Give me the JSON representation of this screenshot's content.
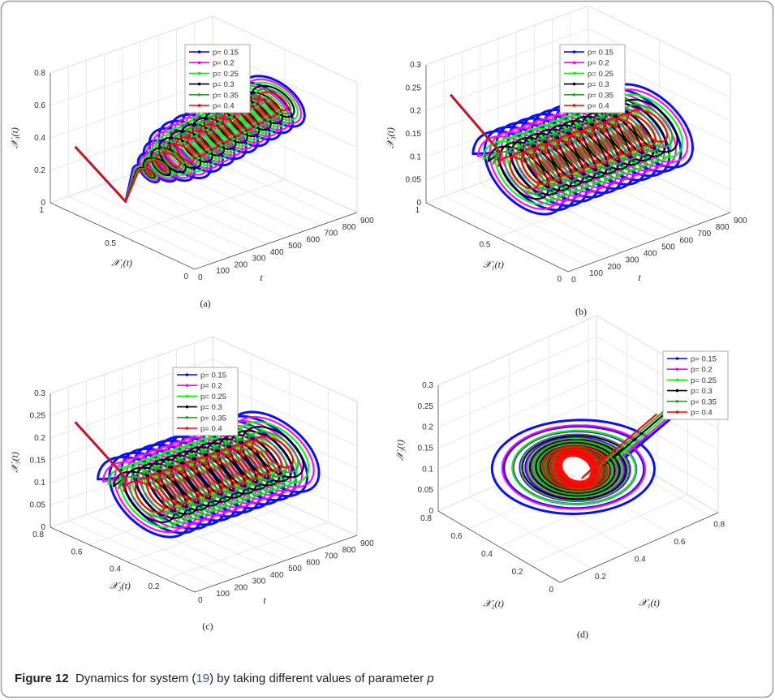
{
  "panels": [
    {
      "label": "(a)",
      "z_label": "𝒳₃(t)",
      "y_label": "𝒳₁(t)",
      "x_label": "t",
      "z_ticks": [
        "0",
        "0.2",
        "0.4",
        "0.6",
        "0.8"
      ],
      "y_ticks": [
        "1",
        "0.5",
        "0"
      ],
      "x_ticks": [
        "0",
        "100",
        "200",
        "300",
        "400",
        "500",
        "600",
        "700",
        "800",
        "900"
      ],
      "legend": [
        {
          "name": "p= 0.15",
          "color": "#0000ff"
        },
        {
          "name": "p= 0.2",
          "color": "#ff00ff"
        },
        {
          "name": "p= 0.25",
          "color": "#00ff00"
        },
        {
          "name": "p= 0.3",
          "color": "#000000"
        },
        {
          "name": "p= 0.35",
          "color": "#33a02c"
        },
        {
          "name": "p= 0.4",
          "color": "#ff0000"
        }
      ]
    },
    {
      "label": "(b)",
      "z_label": "𝒳₃(t)",
      "y_label": "𝒳₁(t)",
      "x_label": "t",
      "z_ticks": [
        "0",
        "0.05",
        "0.1",
        "0.15",
        "0.2",
        "0.25",
        "0.3"
      ],
      "y_ticks": [
        "1",
        "0.5",
        "0"
      ],
      "x_ticks": [
        "0",
        "100",
        "200",
        "300",
        "400",
        "500",
        "600",
        "700",
        "800",
        "900"
      ],
      "legend": [
        {
          "name": "p= 0.15",
          "color": "#0000ff"
        },
        {
          "name": "p= 0.2",
          "color": "#ff00ff"
        },
        {
          "name": "p= 0.25",
          "color": "#00ff00"
        },
        {
          "name": "p= 0.3",
          "color": "#000000"
        },
        {
          "name": "p= 0.35",
          "color": "#33a02c"
        },
        {
          "name": "p= 0.4",
          "color": "#ff0000"
        }
      ]
    },
    {
      "label": "(c)",
      "z_label": "𝒳₃(t)",
      "y_label": "𝒳₂(t)",
      "x_label": "t",
      "z_ticks": [
        "0",
        "0.05",
        "0.1",
        "0.15",
        "0.2",
        "0.25",
        "0.3"
      ],
      "y_ticks": [
        "0.8",
        "0.6",
        "0.4",
        "0.2"
      ],
      "x_ticks": [
        "0",
        "100",
        "200",
        "300",
        "400",
        "500",
        "600",
        "700",
        "800",
        "900"
      ],
      "legend": [
        {
          "name": "p= 0.15",
          "color": "#0000ff"
        },
        {
          "name": "p= 0.2",
          "color": "#ff00ff"
        },
        {
          "name": "p= 0.25",
          "color": "#00ff00"
        },
        {
          "name": "p= 0.3",
          "color": "#000000"
        },
        {
          "name": "p= 0.35",
          "color": "#33a02c"
        },
        {
          "name": "p= 0.4",
          "color": "#ff0000"
        }
      ]
    },
    {
      "label": "(d)",
      "z_label": "𝒳₃(t)",
      "y_label": "𝒳₂(t)",
      "x_label": "𝒳₁(t)",
      "z_ticks": [
        "0",
        "0.05",
        "0.1",
        "0.15",
        "0.2",
        "0.25",
        "0.3"
      ],
      "y_ticks": [
        "0.8",
        "0.6",
        "0.4",
        "0.2",
        "0"
      ],
      "x_ticks": [
        "0.2",
        "0.4",
        "0.6",
        "0.8"
      ],
      "legend": [
        {
          "name": "p= 0.15",
          "color": "#0000ff"
        },
        {
          "name": "p= 0.2",
          "color": "#ff00ff"
        },
        {
          "name": "p= 0.25",
          "color": "#00ff00"
        },
        {
          "name": "p= 0.3",
          "color": "#000000"
        },
        {
          "name": "p= 0.35",
          "color": "#33a02c"
        },
        {
          "name": "p= 0.4",
          "color": "#ff0000"
        }
      ]
    }
  ],
  "caption": {
    "figure": "Figure 12",
    "before": "Dynamics for system (",
    "ref": "19",
    "after": ") by taking different values of parameter ",
    "param": "p"
  }
}
